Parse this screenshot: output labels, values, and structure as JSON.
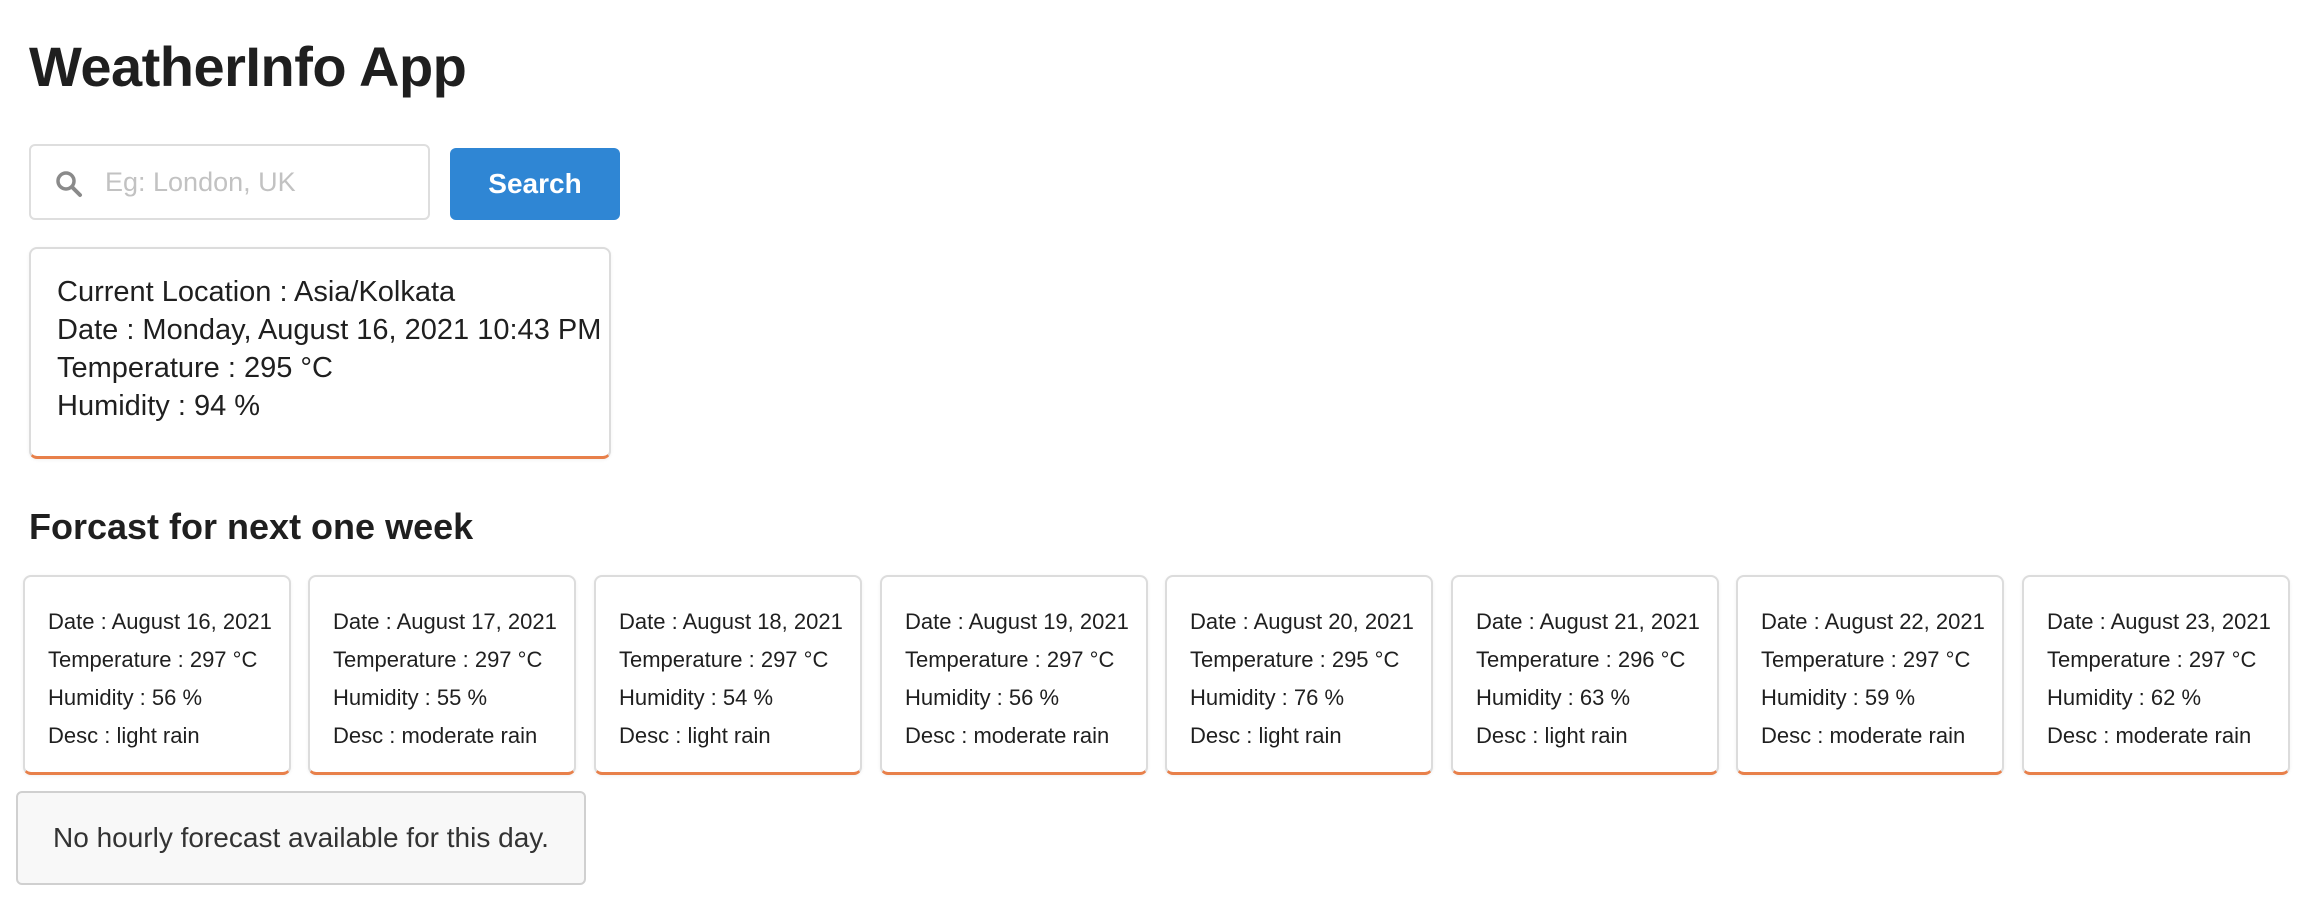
{
  "app": {
    "title": "WeatherInfo App"
  },
  "search": {
    "placeholder": "Eg: London, UK",
    "value": "",
    "button_label": "Search",
    "icon": "search-icon"
  },
  "current": {
    "location": "Current Location : Asia/Kolkata",
    "date": "Date : Monday, August 16, 2021 10:43 PM",
    "temperature": "Temperature : 295 °C",
    "humidity": "Humidity : 94 %"
  },
  "forecast": {
    "title": "Forcast for next one week",
    "days": [
      {
        "date": "Date : August 16, 2021",
        "temperature": "Temperature : 297 °C",
        "humidity": "Humidity : 56 %",
        "desc": "Desc : light rain"
      },
      {
        "date": "Date : August 17, 2021",
        "temperature": "Temperature : 297 °C",
        "humidity": "Humidity : 55 %",
        "desc": "Desc : moderate rain"
      },
      {
        "date": "Date : August 18, 2021",
        "temperature": "Temperature : 297 °C",
        "humidity": "Humidity : 54 %",
        "desc": "Desc : light rain"
      },
      {
        "date": "Date : August 19, 2021",
        "temperature": "Temperature : 297 °C",
        "humidity": "Humidity : 56 %",
        "desc": "Desc : moderate rain"
      },
      {
        "date": "Date : August 20, 2021",
        "temperature": "Temperature : 295 °C",
        "humidity": "Humidity : 76 %",
        "desc": "Desc : light rain"
      },
      {
        "date": "Date : August 21, 2021",
        "temperature": "Temperature : 296 °C",
        "humidity": "Humidity : 63 %",
        "desc": "Desc : light rain"
      },
      {
        "date": "Date : August 22, 2021",
        "temperature": "Temperature : 297 °C",
        "humidity": "Humidity : 59 %",
        "desc": "Desc : moderate rain"
      },
      {
        "date": "Date : August 23, 2021",
        "temperature": "Temperature : 297 °C",
        "humidity": "Humidity : 62 %",
        "desc": "Desc : moderate rain"
      }
    ]
  },
  "hourly": {
    "message": "No hourly forecast available for this day."
  },
  "colors": {
    "accent": "#2f86d4",
    "card_border_bottom": "#e8804a"
  }
}
